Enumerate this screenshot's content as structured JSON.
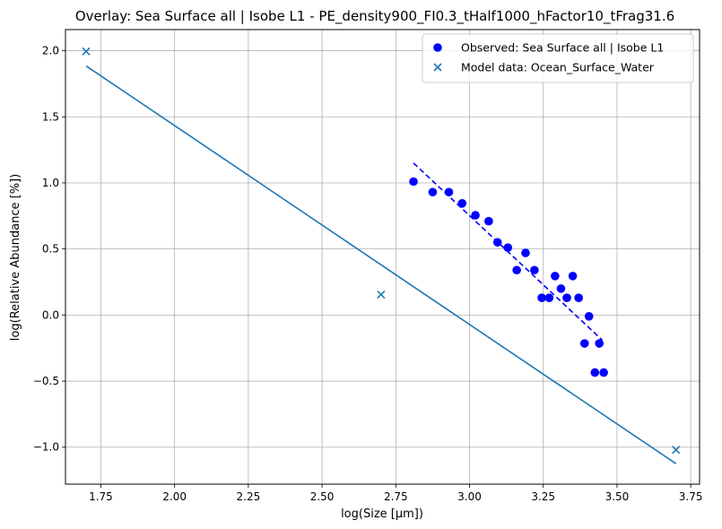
{
  "chart_data": {
    "type": "scatter",
    "title": "Overlay: Sea Surface all | Isobe L1 - PE_density900_FI0.3_tHalf1000_hFactor10_tFrag31.6",
    "xlabel": "log(Size [μm])",
    "ylabel": "log(Relative Abundance [%])",
    "xlim": [
      1.63,
      3.78
    ],
    "ylim": [
      -1.28,
      2.16
    ],
    "xticks": [
      1.75,
      2.0,
      2.25,
      2.5,
      2.75,
      3.0,
      3.25,
      3.5,
      3.75
    ],
    "xtick_labels": [
      "1.75",
      "2.00",
      "2.25",
      "2.50",
      "2.75",
      "3.00",
      "3.25",
      "3.50",
      "3.75"
    ],
    "yticks": [
      -1.0,
      -0.5,
      0.0,
      0.5,
      1.0,
      1.5,
      2.0
    ],
    "ytick_labels": [
      "−1.0",
      "−0.5",
      "0.0",
      "0.5",
      "1.0",
      "1.5",
      "2.0"
    ],
    "grid": true,
    "legend_position": "top-right",
    "series": [
      {
        "name": "Observed: Sea Surface all | Isobe L1",
        "kind": "scatter",
        "marker": "circle",
        "color": "#0000ff",
        "x": [
          2.81,
          2.875,
          2.93,
          2.975,
          3.02,
          3.065,
          3.095,
          3.13,
          3.16,
          3.19,
          3.22,
          3.245,
          3.27,
          3.29,
          3.31,
          3.33,
          3.35,
          3.37,
          3.39,
          3.405,
          3.425,
          3.44,
          3.455
        ],
        "y": [
          1.01,
          0.93,
          0.93,
          0.845,
          0.755,
          0.71,
          0.55,
          0.51,
          0.34,
          0.47,
          0.34,
          0.13,
          0.13,
          0.295,
          0.2,
          0.13,
          0.295,
          0.13,
          -0.215,
          -0.01,
          -0.435,
          -0.215,
          -0.435
        ]
      },
      {
        "name": "",
        "kind": "line",
        "style": "dashed",
        "color": "#0000ff",
        "x": [
          2.81,
          3.45
        ],
        "y": [
          1.15,
          -0.19
        ]
      },
      {
        "name": "Model data: Ocean_Surface_Water",
        "kind": "scatter",
        "marker": "x",
        "color": "#1f77b4",
        "x": [
          1.7,
          2.7,
          3.7
        ],
        "y": [
          1.995,
          0.155,
          -1.02
        ]
      },
      {
        "name": "",
        "kind": "line",
        "style": "solid",
        "color": "#1f77b4",
        "x": [
          1.7,
          3.7
        ],
        "y": [
          1.885,
          -1.125
        ]
      }
    ]
  }
}
